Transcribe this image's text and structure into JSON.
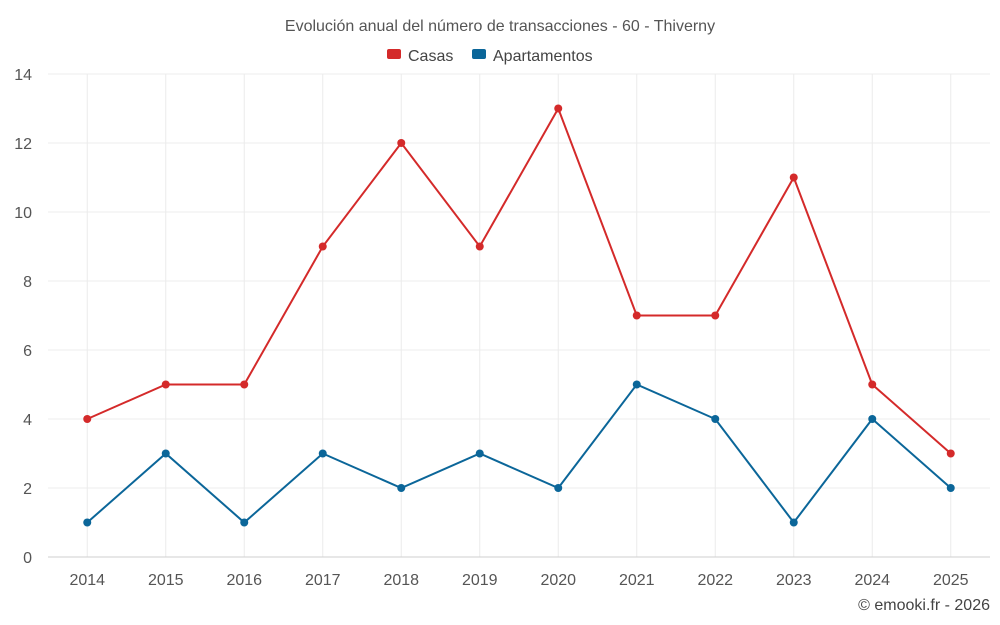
{
  "chart_data": {
    "type": "line",
    "title": "Evolución anual del número de transacciones - 60 - Thiverny",
    "xlabel": "",
    "ylabel": "",
    "categories": [
      "2014",
      "2015",
      "2016",
      "2017",
      "2018",
      "2019",
      "2020",
      "2021",
      "2022",
      "2023",
      "2024",
      "2025"
    ],
    "ylim": [
      0,
      14
    ],
    "yticks": [
      "0",
      "2",
      "4",
      "6",
      "8",
      "10",
      "12",
      "14"
    ],
    "grid": true,
    "legend_position": "top-center",
    "series": [
      {
        "name": "Casas",
        "color": "#d42a2a",
        "values": [
          4,
          5,
          5,
          9,
          12,
          9,
          13,
          7,
          7,
          11,
          5,
          3
        ]
      },
      {
        "name": "Apartamentos",
        "color": "#0b6699",
        "values": [
          1,
          3,
          1,
          3,
          2,
          3,
          2,
          5,
          4,
          1,
          4,
          2
        ]
      }
    ]
  },
  "credit": "© emooki.fr - 2026"
}
